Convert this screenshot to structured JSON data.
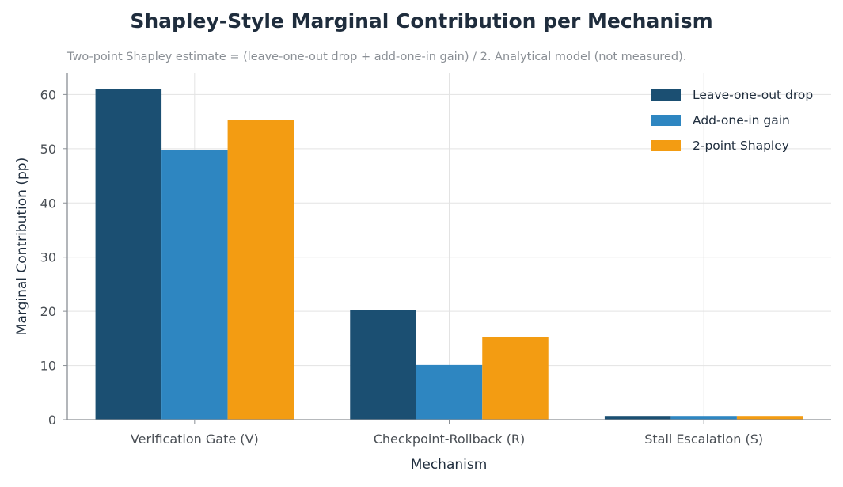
{
  "chart_data": {
    "type": "bar",
    "title": "Shapley-Style Marginal Contribution per Mechanism",
    "subtitle": "Two-point Shapley estimate = (leave-one-out drop + add-one-in gain) / 2. Analytical model (not measured).",
    "xlabel": "Mechanism",
    "ylabel": "Marginal Contribution (pp)",
    "ylim": [
      0,
      64
    ],
    "yticks": [
      0,
      10,
      20,
      30,
      40,
      50,
      60
    ],
    "grid": true,
    "legend_position": "top-right",
    "categories": [
      "Verification Gate (V)",
      "Checkpoint-Rollback (R)",
      "Stall Escalation (S)"
    ],
    "series": [
      {
        "name": "Leave-one-out drop",
        "color": "#1b4f72",
        "values": [
          61,
          20.3,
          0.7
        ]
      },
      {
        "name": "Add-one-in gain",
        "color": "#2e86c1",
        "values": [
          49.7,
          10.1,
          0.7
        ]
      },
      {
        "name": "2-point Shapley",
        "color": "#f39c12",
        "values": [
          55.3,
          15.2,
          0.7
        ]
      }
    ]
  }
}
